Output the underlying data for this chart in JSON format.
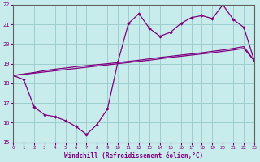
{
  "xlabel": "Windchill (Refroidissement éolien,°C)",
  "xlim": [
    0,
    23
  ],
  "ylim": [
    15,
    22
  ],
  "xticks": [
    0,
    1,
    2,
    3,
    4,
    5,
    6,
    7,
    8,
    9,
    10,
    11,
    12,
    13,
    14,
    15,
    16,
    17,
    18,
    19,
    20,
    21,
    22,
    23
  ],
  "yticks": [
    15,
    16,
    17,
    18,
    19,
    20,
    21,
    22
  ],
  "background_color": "#c8ecec",
  "grid_color": "#9ecece",
  "line_color": "#800080",
  "line1_x": [
    0,
    1,
    2,
    3,
    4,
    5,
    6,
    7,
    8,
    9,
    10,
    11,
    12,
    13,
    14,
    15,
    16,
    17,
    18,
    19,
    20,
    21,
    22,
    23
  ],
  "line1_y": [
    18.4,
    18.2,
    16.8,
    16.4,
    16.3,
    16.1,
    15.8,
    15.4,
    15.9,
    16.7,
    19.1,
    21.05,
    21.55,
    20.8,
    20.4,
    20.6,
    21.05,
    21.35,
    21.45,
    21.3,
    22.0,
    21.25,
    20.85,
    19.15
  ],
  "line2_x": [
    0,
    2,
    3,
    4,
    5,
    6,
    7,
    8,
    9,
    10,
    11,
    12,
    13,
    14,
    15,
    16,
    17,
    18,
    19,
    20,
    21,
    22,
    23
  ],
  "line2_y": [
    18.4,
    18.55,
    18.65,
    18.72,
    18.78,
    18.85,
    18.9,
    18.95,
    19.0,
    19.06,
    19.12,
    19.18,
    19.25,
    19.32,
    19.38,
    19.44,
    19.5,
    19.56,
    19.63,
    19.7,
    19.78,
    19.87,
    19.15
  ],
  "line3_x": [
    0,
    1,
    2,
    3,
    4,
    5,
    6,
    7,
    8,
    9,
    10,
    11,
    12,
    13,
    14,
    15,
    16,
    17,
    18,
    19,
    20,
    21,
    22,
    23
  ],
  "line3_y": [
    18.4,
    18.46,
    18.52,
    18.58,
    18.64,
    18.7,
    18.76,
    18.82,
    18.88,
    18.94,
    19.0,
    19.06,
    19.12,
    19.18,
    19.25,
    19.32,
    19.38,
    19.44,
    19.5,
    19.56,
    19.63,
    19.7,
    19.78,
    19.15
  ],
  "figsize": [
    3.2,
    2.0
  ],
  "dpi": 100
}
